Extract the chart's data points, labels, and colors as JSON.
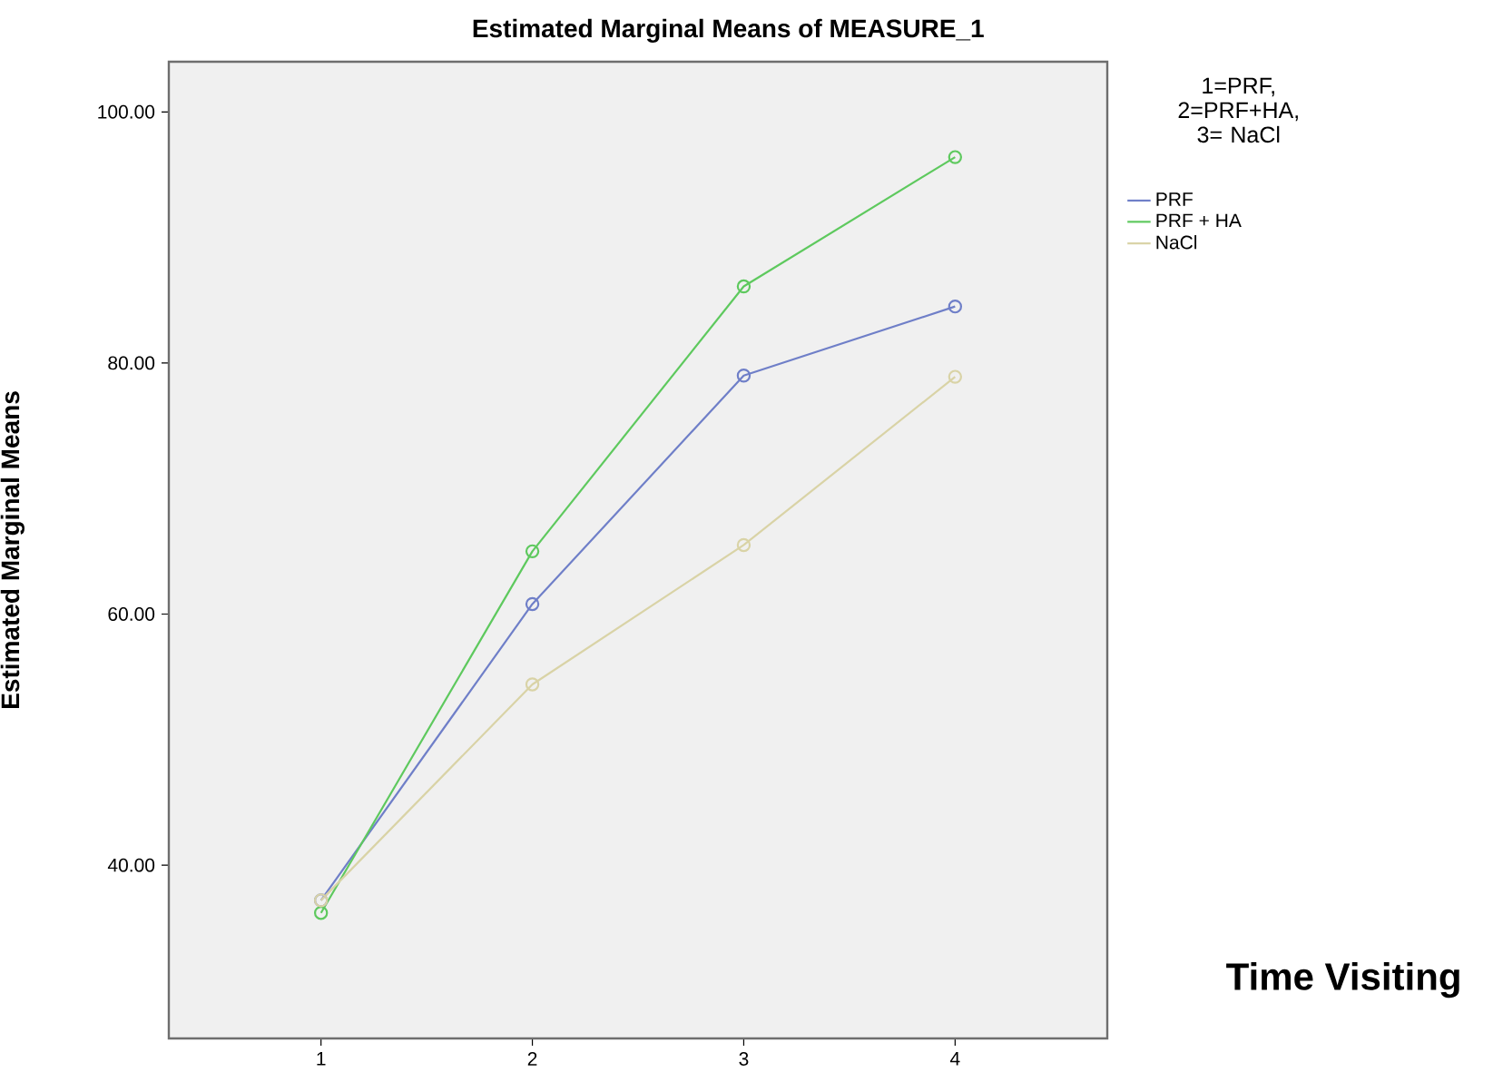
{
  "chart_data": {
    "type": "line",
    "title": "Estimated Marginal Means of MEASURE_1",
    "xlabel": "Time Visiting",
    "ylabel": "Estimated Marginal Means",
    "legend_title": "1=PRF, 2=PRF+HA, 3= NaCl",
    "legend": "top right",
    "marker": "circle",
    "line_style": "solid",
    "grid": false,
    "x": [
      1,
      2,
      3,
      4
    ],
    "xlim": [
      0.28,
      4.72
    ],
    "xticks": [
      1,
      2,
      3,
      4
    ],
    "ylim": [
      26.2,
      104
    ],
    "yticks": [
      {
        "value": 40,
        "label": "40.00"
      },
      {
        "value": 60,
        "label": "60.00"
      },
      {
        "value": 80,
        "label": "80.00"
      },
      {
        "value": 100,
        "label": "100.00"
      }
    ],
    "series": [
      {
        "name": "PRF",
        "color": "#6f7fc8",
        "values": [
          37.2,
          60.8,
          79.0,
          84.5
        ]
      },
      {
        "name": "PRF + HA",
        "color": "#5ec95e",
        "values": [
          36.2,
          65.0,
          86.1,
          96.4
        ]
      },
      {
        "name": "NaCl",
        "color": "#d9d3a6",
        "values": [
          37.2,
          54.4,
          65.5,
          78.9
        ]
      }
    ]
  }
}
